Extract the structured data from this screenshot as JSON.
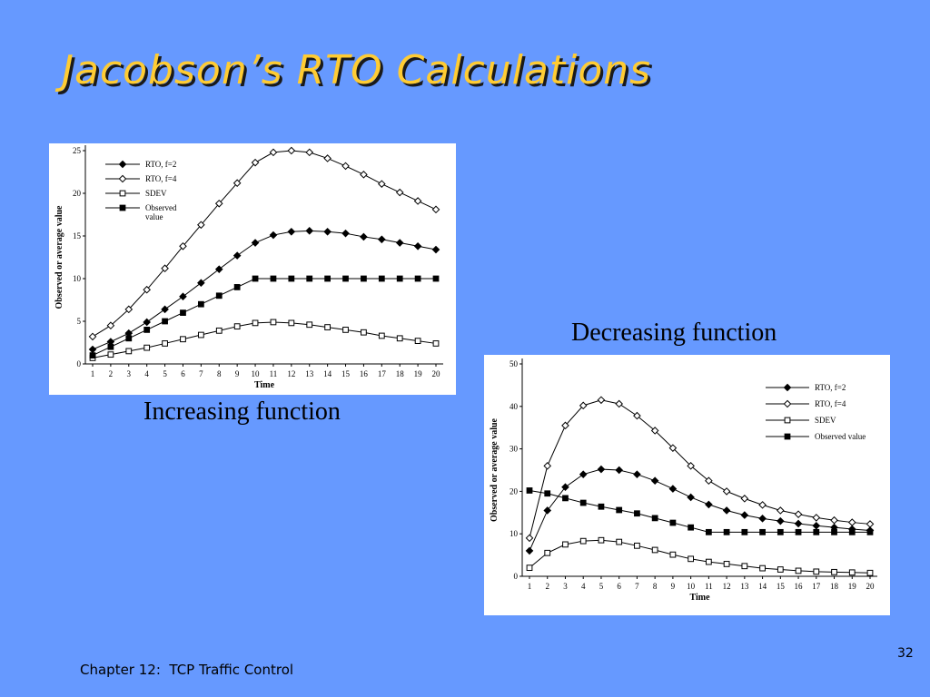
{
  "slide": {
    "title": "Jacobson’s RTO Calculations",
    "footer": "Chapter 12:  TCP Traffic Control",
    "page_number": "32",
    "captions": {
      "increasing": "Increasing function",
      "decreasing": "Decreasing function"
    }
  },
  "colors": {
    "background": "#6699FF",
    "title": "#FFCC33",
    "series_line": "#000000"
  },
  "chart_data": [
    {
      "type": "line",
      "title": "",
      "xlabel": "Time",
      "ylabel": "Observed or average value",
      "ylim": [
        0,
        25
      ],
      "yticks": [
        0,
        5,
        10,
        15,
        20,
        25
      ],
      "x": [
        1,
        2,
        3,
        4,
        5,
        6,
        7,
        8,
        9,
        10,
        11,
        12,
        13,
        14,
        15,
        16,
        17,
        18,
        19,
        20
      ],
      "legend_position": "top-left",
      "grid": false,
      "series": [
        {
          "name": "RTO, f=2",
          "marker": "filled-diamond",
          "values": [
            1.7,
            2.6,
            3.6,
            4.9,
            6.4,
            7.9,
            9.5,
            11.1,
            12.7,
            14.2,
            15.1,
            15.5,
            15.6,
            15.5,
            15.3,
            14.9,
            14.6,
            14.2,
            13.8,
            13.4
          ]
        },
        {
          "name": "RTO, f=4",
          "marker": "open-diamond",
          "values": [
            3.2,
            4.5,
            6.4,
            8.7,
            11.2,
            13.8,
            16.3,
            18.8,
            21.2,
            23.6,
            24.8,
            25.0,
            24.8,
            24.1,
            23.2,
            22.2,
            21.1,
            20.1,
            19.1,
            18.1
          ]
        },
        {
          "name": "SDEV",
          "marker": "open-square",
          "values": [
            0.7,
            1.1,
            1.5,
            1.9,
            2.4,
            2.9,
            3.4,
            3.9,
            4.4,
            4.8,
            4.9,
            4.8,
            4.6,
            4.3,
            4.0,
            3.7,
            3.3,
            3.0,
            2.7,
            2.4
          ]
        },
        {
          "name": "Observed value",
          "marker": "filled-square",
          "values": [
            1.0,
            2.0,
            3.0,
            4.0,
            5.0,
            6.0,
            7.0,
            8.0,
            9.0,
            10,
            10,
            10,
            10,
            10,
            10,
            10,
            10,
            10,
            10,
            10
          ]
        }
      ]
    },
    {
      "type": "line",
      "title": "",
      "xlabel": "Time",
      "ylabel": "Observed or average value",
      "ylim": [
        0,
        50
      ],
      "yticks": [
        0,
        10,
        20,
        30,
        40,
        50
      ],
      "x": [
        1,
        2,
        3,
        4,
        5,
        6,
        7,
        8,
        9,
        10,
        11,
        12,
        13,
        14,
        15,
        16,
        17,
        18,
        19,
        20
      ],
      "legend_position": "top-right",
      "grid": false,
      "series": [
        {
          "name": "RTO, f=2",
          "marker": "filled-diamond",
          "values": [
            6.0,
            15.5,
            21.0,
            24.0,
            25.2,
            25.0,
            24.0,
            22.5,
            20.6,
            18.6,
            16.9,
            15.5,
            14.4,
            13.6,
            13.0,
            12.4,
            11.9,
            11.5,
            11.1,
            10.8
          ]
        },
        {
          "name": "RTO, f=4",
          "marker": "open-diamond",
          "values": [
            9.0,
            26.0,
            35.5,
            40.2,
            41.5,
            40.6,
            37.8,
            34.3,
            30.2,
            26.0,
            22.5,
            20.0,
            18.3,
            16.8,
            15.5,
            14.6,
            13.8,
            13.2,
            12.7,
            12.3
          ]
        },
        {
          "name": "SDEV",
          "marker": "open-square",
          "values": [
            2.0,
            5.5,
            7.5,
            8.3,
            8.5,
            8.1,
            7.2,
            6.2,
            5.1,
            4.1,
            3.4,
            2.9,
            2.4,
            1.9,
            1.6,
            1.3,
            1.1,
            1.0,
            0.9,
            0.8
          ]
        },
        {
          "name": "Observed value",
          "marker": "filled-square",
          "values": [
            20.2,
            19.5,
            18.4,
            17.3,
            16.4,
            15.6,
            14.8,
            13.7,
            12.6,
            11.5,
            10.4,
            10.4,
            10.4,
            10.4,
            10.4,
            10.4,
            10.4,
            10.4,
            10.4,
            10.4
          ]
        }
      ]
    }
  ]
}
